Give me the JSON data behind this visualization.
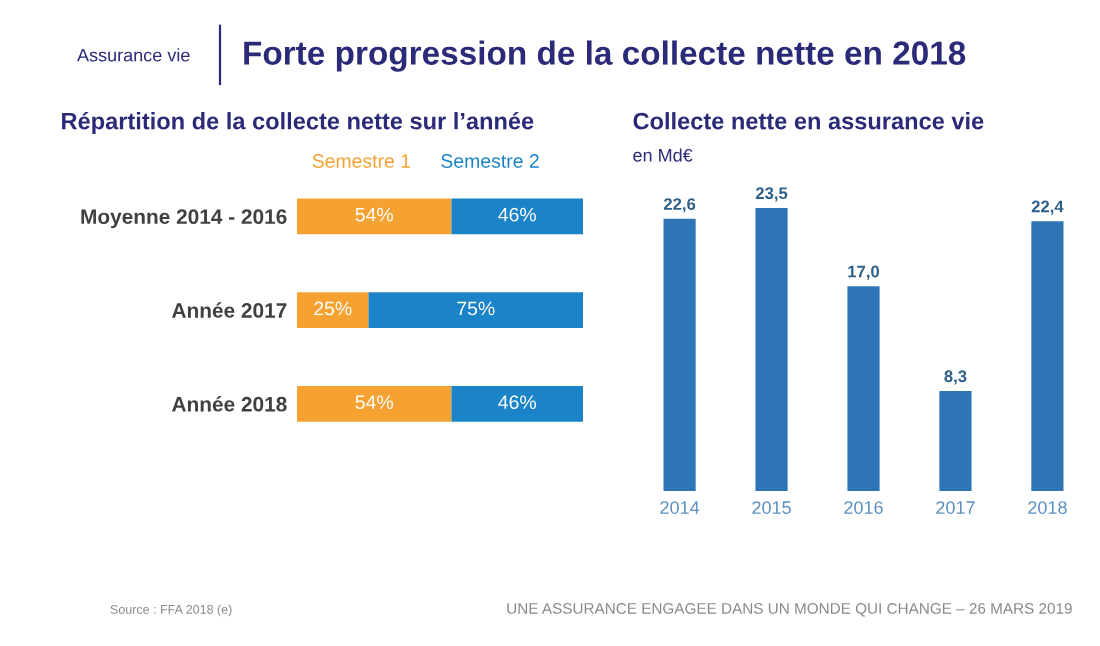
{
  "chart_data": [
    {
      "type": "bar",
      "orientation": "horizontal",
      "stacked": true,
      "title": "Répartition de la collecte nette sur l’année",
      "legend": "top",
      "categories": [
        "Moyenne 2014 - 2016",
        "Année 2017",
        "Année 2018"
      ],
      "xlim": [
        0,
        100
      ],
      "tick_labels": "y",
      "series": [
        {
          "name": "Semestre 1",
          "color": "#f6a233",
          "values": [
            54,
            25,
            54
          ],
          "value_labels": [
            "54%",
            "25%",
            "54%"
          ]
        },
        {
          "name": "Semestre 2",
          "color": "#1b84c8",
          "values": [
            46,
            75,
            46
          ],
          "value_labels": [
            "46%",
            "75%",
            "46%"
          ]
        }
      ],
      "annotations": [
        "Assurance vie",
        "Forte progression de la collecte nette en 2018",
        "Source : FFA 2018 (e)",
        "UNE ASSURANCE ENGAGEE DANS UN MONDE QUI CHANGE – 26 MARS 2019"
      ]
    },
    {
      "type": "bar",
      "title": "Collecte nette en assurance vie",
      "subtitle": "en Md€",
      "categories": [
        "2014",
        "2015",
        "2016",
        "2017",
        "2018"
      ],
      "values": [
        22.6,
        23.5,
        17.0,
        8.3,
        22.4
      ],
      "value_labels": [
        "22,6",
        "23,5",
        "17,0",
        "8,3",
        "22,4"
      ],
      "color": "#2e75b6",
      "tick_labels": "x"
    }
  ]
}
